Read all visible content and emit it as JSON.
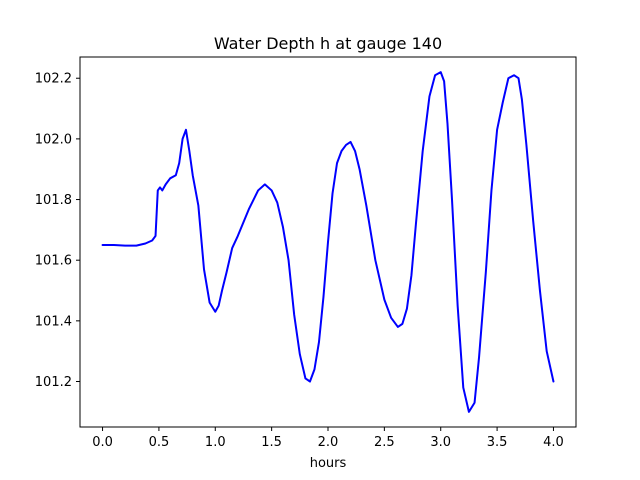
{
  "chart_data": {
    "type": "line",
    "title": "Water Depth h at gauge 140",
    "xlabel": "hours",
    "ylabel": "",
    "xlim": [
      -0.2,
      4.2
    ],
    "ylim": [
      101.05,
      102.27
    ],
    "grid": false,
    "x_ticks": [
      0.0,
      0.5,
      1.0,
      1.5,
      2.0,
      2.5,
      3.0,
      3.5,
      4.0
    ],
    "x_tick_labels": [
      "0.0",
      "0.5",
      "1.0",
      "1.5",
      "2.0",
      "2.5",
      "3.0",
      "3.5",
      "4.0"
    ],
    "y_ticks": [
      101.2,
      101.4,
      101.6,
      101.8,
      102.0,
      102.2
    ],
    "y_tick_labels": [
      "101.2",
      "101.4",
      "101.6",
      "101.8",
      "102.0",
      "102.2"
    ],
    "series": [
      {
        "color": "#0000ff",
        "x": [
          0.0,
          0.1,
          0.2,
          0.3,
          0.38,
          0.44,
          0.47,
          0.49,
          0.51,
          0.53,
          0.56,
          0.6,
          0.65,
          0.68,
          0.71,
          0.74,
          0.77,
          0.8,
          0.85,
          0.9,
          0.95,
          1.0,
          1.03,
          1.06,
          1.1,
          1.15,
          1.2,
          1.3,
          1.38,
          1.44,
          1.5,
          1.55,
          1.6,
          1.65,
          1.7,
          1.75,
          1.8,
          1.84,
          1.88,
          1.92,
          1.96,
          2.0,
          2.04,
          2.08,
          2.12,
          2.16,
          2.2,
          2.24,
          2.28,
          2.34,
          2.42,
          2.5,
          2.56,
          2.62,
          2.66,
          2.7,
          2.74,
          2.78,
          2.84,
          2.9,
          2.95,
          3.0,
          3.03,
          3.06,
          3.1,
          3.15,
          3.2,
          3.25,
          3.3,
          3.34,
          3.4,
          3.45,
          3.5,
          3.55,
          3.6,
          3.65,
          3.69,
          3.72,
          3.76,
          3.82,
          3.88,
          3.94,
          4.0
        ],
        "y": [
          101.65,
          101.65,
          101.648,
          101.648,
          101.655,
          101.665,
          101.68,
          101.83,
          101.84,
          101.83,
          101.85,
          101.87,
          101.88,
          101.92,
          102.0,
          102.03,
          101.96,
          101.88,
          101.78,
          101.57,
          101.46,
          101.43,
          101.45,
          101.5,
          101.56,
          101.64,
          101.68,
          101.77,
          101.83,
          101.85,
          101.83,
          101.79,
          101.71,
          101.6,
          101.42,
          101.29,
          101.21,
          101.2,
          101.24,
          101.33,
          101.48,
          101.66,
          101.82,
          101.92,
          101.96,
          101.98,
          101.99,
          101.96,
          101.9,
          101.78,
          101.6,
          101.47,
          101.41,
          101.38,
          101.39,
          101.44,
          101.55,
          101.72,
          101.96,
          102.14,
          102.21,
          102.22,
          102.19,
          102.05,
          101.8,
          101.45,
          101.18,
          101.1,
          101.13,
          101.28,
          101.56,
          101.83,
          102.03,
          102.12,
          102.2,
          102.21,
          102.2,
          102.13,
          101.98,
          101.73,
          101.5,
          101.3,
          101.2
        ]
      }
    ]
  }
}
